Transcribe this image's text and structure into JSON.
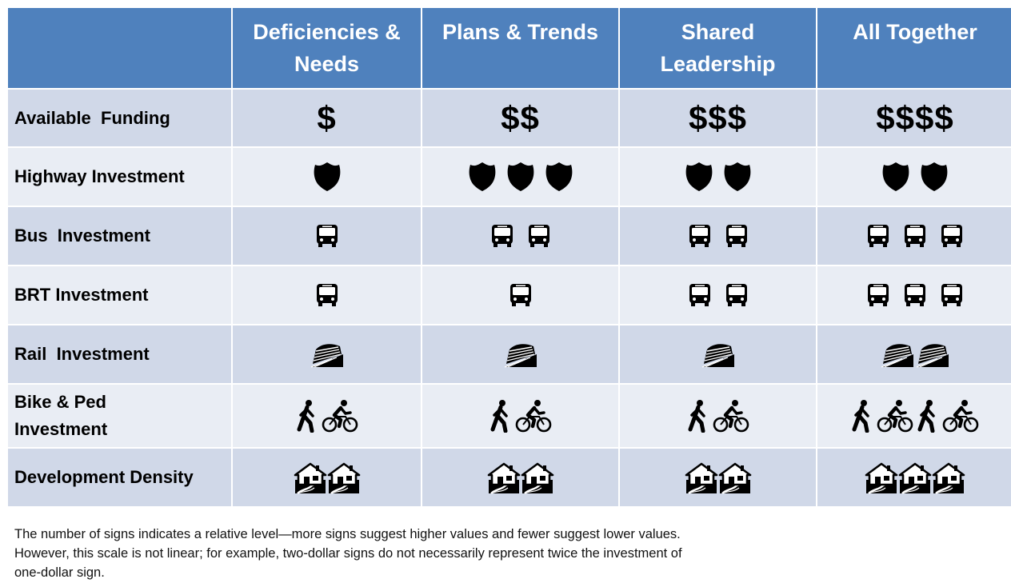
{
  "columns": [
    {
      "label": "Deficiencies &\nNeeds"
    },
    {
      "label": "Plans & Trends"
    },
    {
      "label": "Shared\nLeadership"
    },
    {
      "label": "All Together"
    }
  ],
  "rows": [
    {
      "label": "Available  Funding",
      "icon": "dollar-icon",
      "counts": [
        1,
        2,
        3,
        4
      ],
      "values": [
        "$",
        "$$",
        "$$$",
        "$$$$"
      ]
    },
    {
      "label": "Highway Investment",
      "icon": "highway-shield-icon",
      "counts": [
        1,
        3,
        2,
        2
      ]
    },
    {
      "label": "Bus  Investment",
      "icon": "bus-icon",
      "counts": [
        1,
        2,
        2,
        3
      ]
    },
    {
      "label": "BRT Investment",
      "icon": "bus-icon",
      "counts": [
        1,
        1,
        2,
        3
      ]
    },
    {
      "label": "Rail  Investment",
      "icon": "train-icon",
      "counts": [
        1,
        1,
        1,
        2
      ]
    },
    {
      "label": "Bike & Ped\nInvestment",
      "icon": "walk-bike-icon",
      "counts": [
        1,
        1,
        1,
        2
      ]
    },
    {
      "label": "Development Density",
      "icon": "house-icon",
      "counts": [
        2,
        2,
        2,
        3
      ]
    }
  ],
  "footnote": "The number of signs indicates a relative level—more signs suggest higher values and fewer suggest lower values. However, this scale is not linear; for example, two-dollar signs do not necessarily represent twice the investment of one-dollar sign."
}
